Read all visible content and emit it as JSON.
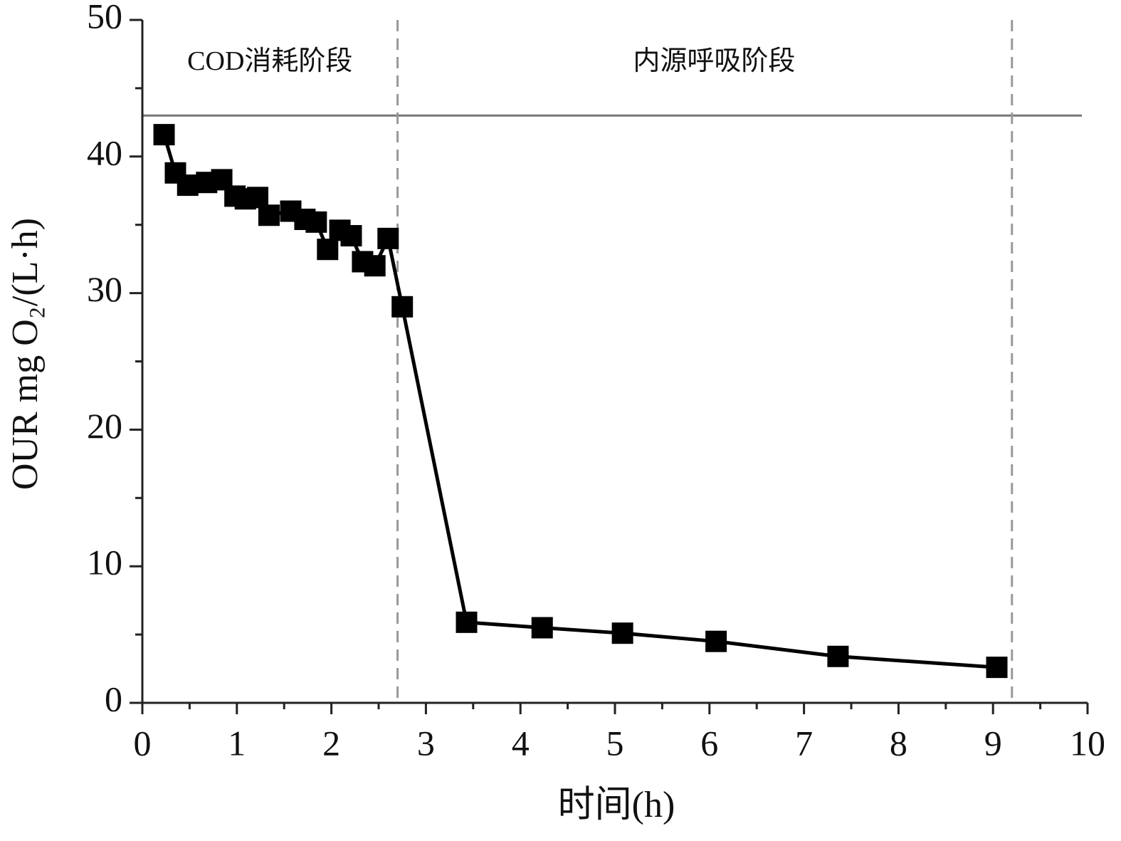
{
  "chart_data": {
    "type": "line",
    "xlabel": "时间(h)",
    "ylabel": "OUR mg O₂/(L·h)",
    "x": [
      0.23,
      0.35,
      0.48,
      0.68,
      0.84,
      0.98,
      1.09,
      1.22,
      1.34,
      1.57,
      1.72,
      1.84,
      1.96,
      2.09,
      2.21,
      2.33,
      2.46,
      2.6,
      2.75,
      3.43,
      4.23,
      5.08,
      6.07,
      7.36,
      9.04
    ],
    "series": [
      {
        "color": "#000000",
        "values": [
          41.6,
          38.8,
          37.9,
          38.1,
          38.3,
          37.1,
          36.9,
          37.0,
          35.7,
          36.0,
          35.4,
          35.2,
          33.2,
          34.6,
          34.2,
          32.3,
          32.0,
          34.0,
          29.0,
          5.9,
          5.5,
          5.1,
          4.5,
          3.4,
          2.6
        ]
      }
    ],
    "xlim": [
      0,
      10
    ],
    "xticks": [
      0,
      1,
      2,
      3,
      4,
      5,
      6,
      7,
      8,
      9,
      10
    ],
    "x_minor_ticks": [
      0.5,
      1.5,
      2.5,
      3.5,
      4.5,
      5.5,
      6.5,
      7.5,
      8.5,
      9.5
    ],
    "ylim": [
      0,
      50
    ],
    "yticks": [
      0,
      10,
      20,
      30,
      40,
      50
    ],
    "y_minor_ticks": [
      5,
      15,
      25,
      35,
      45
    ],
    "hlines": [
      {
        "value": 43,
        "color": "#777777"
      }
    ],
    "vlines": [
      {
        "value": 2.7,
        "color": "#999999"
      },
      {
        "value": 9.2,
        "color": "#999999"
      }
    ],
    "annotations": [
      {
        "text": "COD消耗阶段",
        "x": 1.35,
        "y": 46.8
      },
      {
        "text": "内源呼吸阶段",
        "x": 6.05,
        "y": 46.8
      }
    ]
  }
}
